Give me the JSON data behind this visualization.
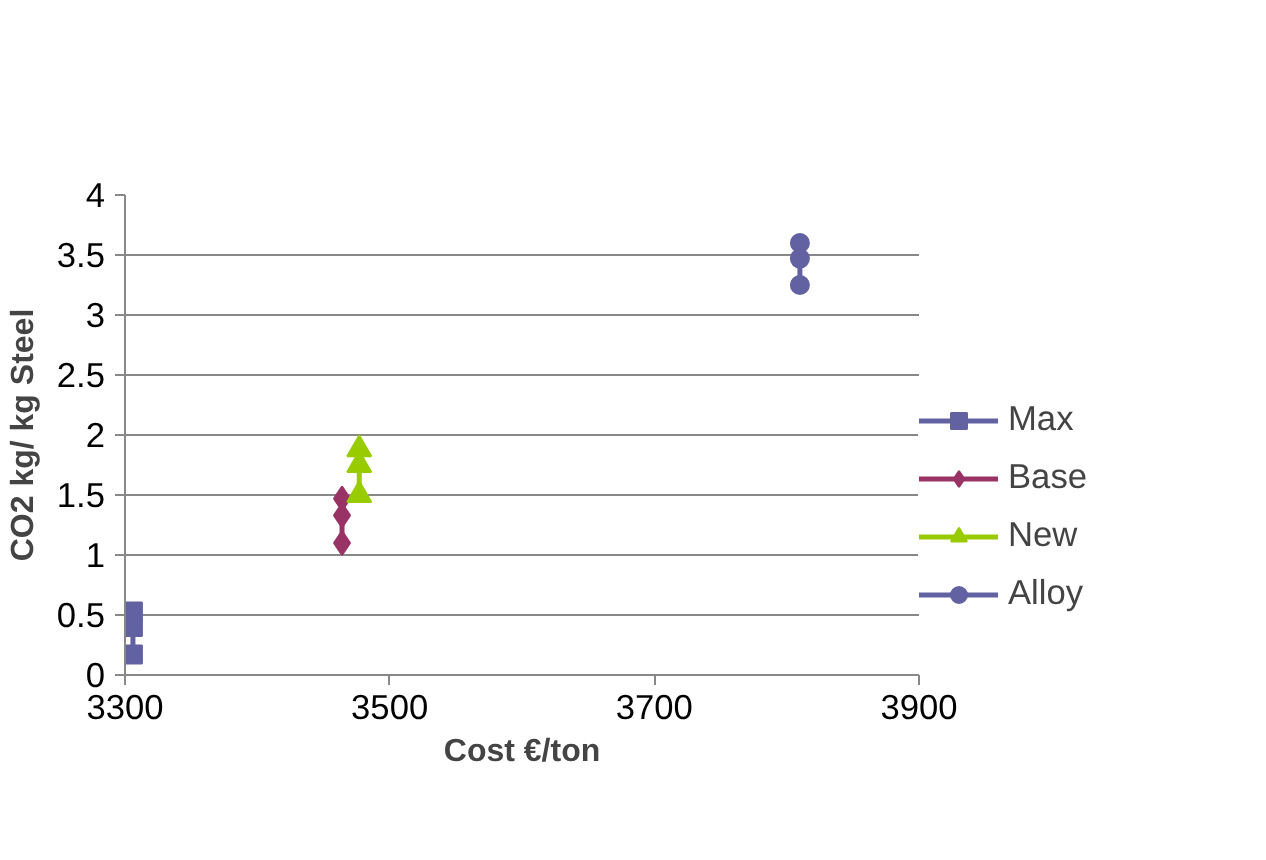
{
  "chart_data": {
    "type": "line",
    "xlabel": "Cost €/ton",
    "ylabel": "CO2 kg/ kg Steel",
    "xlim": [
      3300,
      3900
    ],
    "xticks": [
      3300,
      3500,
      3700,
      3900
    ],
    "ylim": [
      0,
      4
    ],
    "yticks": [
      0,
      0.5,
      1,
      1.5,
      2,
      2.5,
      3,
      3.5,
      4
    ],
    "grid": "y",
    "legend": "right",
    "line_style": "solid",
    "series": [
      {
        "name": "Max",
        "color": "#6262a2",
        "marker": "square",
        "x": [
          3306,
          3306,
          3306
        ],
        "values": [
          0.53,
          0.4,
          0.17
        ]
      },
      {
        "name": "Base",
        "color": "#993366",
        "marker": "diamond",
        "x": [
          3464,
          3464,
          3464
        ],
        "values": [
          1.47,
          1.33,
          1.1
        ]
      },
      {
        "name": "New",
        "color": "#99cc00",
        "marker": "triangle",
        "x": [
          3477,
          3477,
          3477
        ],
        "values": [
          1.88,
          1.75,
          1.5
        ]
      },
      {
        "name": "Alloy",
        "color": "#6262a2",
        "marker": "circle",
        "x": [
          3810,
          3810,
          3810
        ],
        "values": [
          3.6,
          3.47,
          3.25
        ]
      }
    ]
  }
}
